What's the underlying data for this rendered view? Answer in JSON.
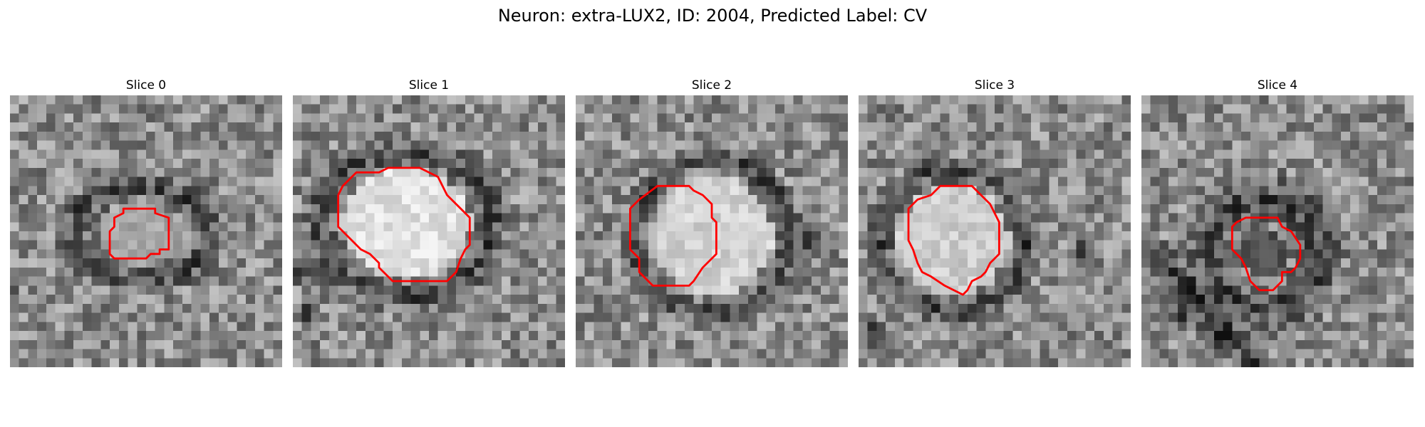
{
  "figure": {
    "title": "Neuron: extra-LUX2, ID: 2004, Predicted Label: CV"
  },
  "slices": [
    {
      "label": "Slice 0",
      "contour": [
        [
          14.5,
          12.5
        ],
        [
          16,
          12.5
        ],
        [
          16,
          13
        ],
        [
          17.5,
          13.5
        ],
        [
          17.5,
          17
        ],
        [
          16.5,
          17
        ],
        [
          16.5,
          17.5
        ],
        [
          15.5,
          17.5
        ],
        [
          15,
          18
        ],
        [
          11.5,
          18
        ],
        [
          11,
          17.5
        ],
        [
          11,
          15
        ],
        [
          11.5,
          14.5
        ],
        [
          11.5,
          13.5
        ],
        [
          12.5,
          13
        ],
        [
          12.5,
          12.5
        ]
      ]
    },
    {
      "label": "Slice 1",
      "contour": [
        [
          10.5,
          8
        ],
        [
          14,
          8
        ],
        [
          16,
          9
        ],
        [
          16.5,
          10
        ],
        [
          17,
          11
        ],
        [
          18.5,
          12.5
        ],
        [
          19.5,
          13.5
        ],
        [
          19.5,
          16.5
        ],
        [
          19,
          17
        ],
        [
          18.5,
          18
        ],
        [
          18,
          19.5
        ],
        [
          17.5,
          20
        ],
        [
          17,
          20.5
        ],
        [
          11,
          20.5
        ],
        [
          10.5,
          20
        ],
        [
          9.5,
          19
        ],
        [
          9.5,
          18.5
        ],
        [
          8.5,
          17.5
        ],
        [
          7.5,
          17
        ],
        [
          6,
          15.5
        ],
        [
          5,
          14.5
        ],
        [
          5,
          11
        ],
        [
          5.5,
          10
        ],
        [
          6,
          9.5
        ],
        [
          7,
          8.5
        ],
        [
          8.5,
          8.5
        ],
        [
          9.5,
          8.5
        ]
      ]
    },
    {
      "label": "Slice 2",
      "contour": [
        [
          9,
          10
        ],
        [
          12.5,
          10
        ],
        [
          13,
          10.5
        ],
        [
          14,
          11
        ],
        [
          15,
          12
        ],
        [
          15,
          13.5
        ],
        [
          15.5,
          14
        ],
        [
          15.5,
          17.5
        ],
        [
          15,
          18
        ],
        [
          14,
          19
        ],
        [
          13,
          20.5
        ],
        [
          12.5,
          21
        ],
        [
          8.5,
          21
        ],
        [
          8,
          20.5
        ],
        [
          7.5,
          20
        ],
        [
          7,
          19.5
        ],
        [
          7,
          18
        ],
        [
          6.5,
          17.5
        ],
        [
          6,
          17
        ],
        [
          6,
          12.5
        ],
        [
          7,
          11.5
        ]
      ]
    },
    {
      "label": "Slice 3",
      "contour": [
        [
          9,
          10
        ],
        [
          12.5,
          10
        ],
        [
          13,
          10.5
        ],
        [
          14,
          11.5
        ],
        [
          14.5,
          12
        ],
        [
          15,
          13
        ],
        [
          15.5,
          14
        ],
        [
          15.5,
          17.5
        ],
        [
          15,
          18
        ],
        [
          14.5,
          18.5
        ],
        [
          14,
          19.5
        ],
        [
          13.5,
          20
        ],
        [
          12.5,
          20.5
        ],
        [
          12,
          21.5
        ],
        [
          11.5,
          22
        ],
        [
          10.5,
          21.5
        ],
        [
          9.5,
          21
        ],
        [
          8,
          20
        ],
        [
          7,
          19.5
        ],
        [
          6.5,
          18.5
        ],
        [
          6,
          17
        ],
        [
          5.5,
          16
        ],
        [
          5.5,
          12.5
        ],
        [
          6.5,
          11.5
        ],
        [
          8,
          11
        ]
      ]
    },
    {
      "label": "Slice 4",
      "contour": [
        [
          12.5,
          13.5
        ],
        [
          15,
          13.5
        ],
        [
          15.5,
          14.5
        ],
        [
          16.5,
          15
        ],
        [
          17.5,
          16.5
        ],
        [
          17.5,
          18
        ],
        [
          17,
          19
        ],
        [
          16.5,
          19.5
        ],
        [
          15.5,
          19.5
        ],
        [
          15.5,
          20.5
        ],
        [
          14.5,
          21.5
        ],
        [
          13,
          21.5
        ],
        [
          12,
          20.5
        ],
        [
          11.5,
          19
        ],
        [
          11,
          18
        ],
        [
          10.5,
          17.5
        ],
        [
          10,
          17
        ],
        [
          10,
          14.5
        ],
        [
          10.5,
          14
        ],
        [
          11.5,
          13.5
        ]
      ]
    }
  ]
}
